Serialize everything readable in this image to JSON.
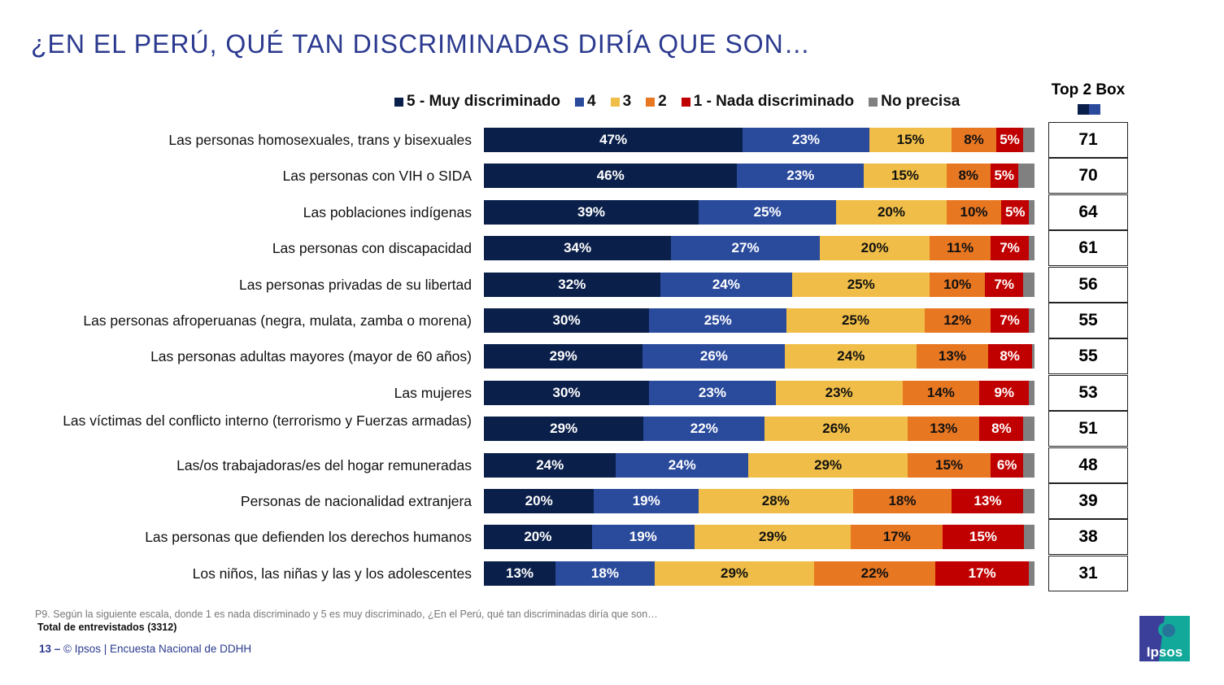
{
  "title": "¿EN EL PERÚ, QUÉ TAN DISCRIMINADAS DIRÍA QUE SON…",
  "chart_data": {
    "type": "bar",
    "orientation": "horizontal-stacked-100",
    "series": [
      {
        "name": "5 - Muy discriminado",
        "color": "#0a1f4a",
        "values": [
          47,
          46,
          39,
          34,
          32,
          30,
          29,
          30,
          29,
          24,
          20,
          20,
          13
        ]
      },
      {
        "name": "4",
        "color": "#2a4a9c",
        "values": [
          23,
          23,
          25,
          27,
          24,
          25,
          26,
          23,
          22,
          24,
          19,
          19,
          18
        ]
      },
      {
        "name": "3",
        "color": "#f0be48",
        "values": [
          15,
          15,
          20,
          20,
          25,
          25,
          24,
          23,
          26,
          29,
          28,
          29,
          29
        ]
      },
      {
        "name": "2",
        "color": "#e87722",
        "values": [
          8,
          8,
          10,
          11,
          10,
          12,
          13,
          14,
          13,
          15,
          18,
          17,
          22
        ]
      },
      {
        "name": "1 - Nada discriminado",
        "color": "#c00000",
        "values": [
          5,
          5,
          5,
          7,
          7,
          7,
          8,
          9,
          8,
          6,
          13,
          15,
          17
        ]
      },
      {
        "name": "No precisa",
        "color": "#808080",
        "values": [
          2,
          3,
          1,
          1,
          2,
          1,
          0.5,
          1,
          2,
          2,
          2,
          2,
          1
        ],
        "labels_shown": false
      }
    ],
    "categories": [
      "Las personas homosexuales, trans y bisexuales",
      "Las personas con VIH o SIDA",
      "Las poblaciones indígenas",
      "Las personas con discapacidad",
      "Las personas privadas de su libertad",
      "Las personas afroperuanas (negra, mulata, zamba o morena)",
      "Las personas adultas mayores (mayor de 60 años)",
      "Las mujeres",
      "Las víctimas del conflicto interno (terrorismo y Fuerzas armadas)",
      "Las/os trabajadoras/es del hogar remuneradas",
      "Personas de nacionalidad extranjera",
      "Las personas que defienden los derechos humanos",
      "Los niños, las niñas y las y los adolescentes"
    ],
    "top2box": {
      "title": "Top 2 Box",
      "values": [
        71,
        70,
        64,
        61,
        56,
        55,
        55,
        53,
        51,
        48,
        39,
        38,
        31
      ]
    },
    "legend_position": "top",
    "unit": "%"
  },
  "note": "P9. Según la siguiente escala, donde 1 es nada discriminado y 5 es muy discriminado, ¿En el Perú, qué tan discriminadas diría que son…",
  "base": "Total de entrevistados (3312)",
  "footer": {
    "page": "13 –",
    "text": "© Ipsos | Encuesta Nacional de DDHH"
  },
  "logo_text": "Ipsos"
}
